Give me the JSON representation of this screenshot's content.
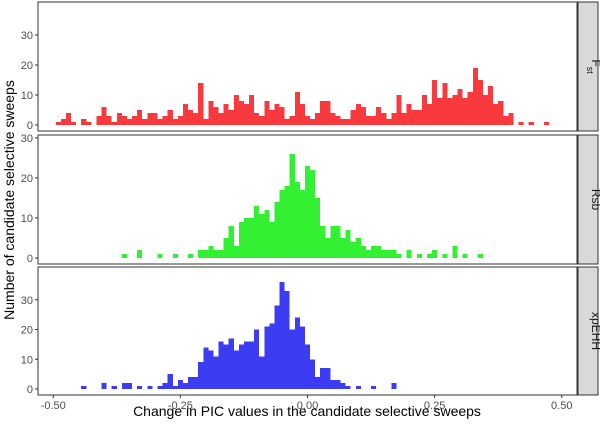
{
  "chart_data": {
    "type": "bar",
    "xlabel": "Change in PIC values in the candidate selective sweeps",
    "ylabel": "Number of candidate selective sweeps",
    "xlim": [
      -0.53,
      0.53
    ],
    "xticks": [
      -0.5,
      -0.25,
      0.0,
      0.25,
      0.5
    ],
    "xtick_labels": [
      "-0.50",
      "-0.25",
      "0.00",
      "0.25",
      "0.50"
    ],
    "yticks": [
      0,
      10,
      20,
      30
    ],
    "bin_width": 0.01,
    "grid": false,
    "panels": [
      {
        "name": "Fst",
        "label_main": "F",
        "label_sub": "st",
        "color": "#f8393e",
        "ylim": [
          0,
          40
        ],
        "bins": [
          [
            -0.49,
            1
          ],
          [
            -0.48,
            2
          ],
          [
            -0.47,
            4
          ],
          [
            -0.46,
            1
          ],
          [
            -0.44,
            2
          ],
          [
            -0.43,
            1
          ],
          [
            -0.41,
            3
          ],
          [
            -0.4,
            6
          ],
          [
            -0.39,
            3
          ],
          [
            -0.38,
            1
          ],
          [
            -0.37,
            4
          ],
          [
            -0.36,
            3
          ],
          [
            -0.35,
            2
          ],
          [
            -0.34,
            3
          ],
          [
            -0.33,
            5
          ],
          [
            -0.32,
            2
          ],
          [
            -0.31,
            4
          ],
          [
            -0.3,
            4
          ],
          [
            -0.29,
            2
          ],
          [
            -0.28,
            3
          ],
          [
            -0.27,
            5
          ],
          [
            -0.26,
            2
          ],
          [
            -0.25,
            3
          ],
          [
            -0.24,
            7
          ],
          [
            -0.23,
            5
          ],
          [
            -0.22,
            4
          ],
          [
            -0.21,
            14
          ],
          [
            -0.2,
            2
          ],
          [
            -0.19,
            8
          ],
          [
            -0.18,
            6
          ],
          [
            -0.17,
            4
          ],
          [
            -0.16,
            7
          ],
          [
            -0.15,
            5
          ],
          [
            -0.14,
            10
          ],
          [
            -0.13,
            8
          ],
          [
            -0.12,
            7
          ],
          [
            -0.11,
            10
          ],
          [
            -0.1,
            4
          ],
          [
            -0.09,
            3
          ],
          [
            -0.08,
            8
          ],
          [
            -0.07,
            5
          ],
          [
            -0.06,
            7
          ],
          [
            -0.05,
            6
          ],
          [
            -0.04,
            2
          ],
          [
            -0.03,
            3
          ],
          [
            -0.02,
            11
          ],
          [
            -0.01,
            7
          ],
          [
            0.0,
            3
          ],
          [
            0.01,
            2
          ],
          [
            0.02,
            4
          ],
          [
            0.03,
            8
          ],
          [
            0.04,
            8
          ],
          [
            0.05,
            4
          ],
          [
            0.06,
            3
          ],
          [
            0.07,
            2
          ],
          [
            0.08,
            2
          ],
          [
            0.09,
            5
          ],
          [
            0.1,
            7
          ],
          [
            0.11,
            6
          ],
          [
            0.12,
            3
          ],
          [
            0.13,
            3
          ],
          [
            0.14,
            6
          ],
          [
            0.15,
            4
          ],
          [
            0.16,
            2
          ],
          [
            0.17,
            4
          ],
          [
            0.18,
            10
          ],
          [
            0.19,
            4
          ],
          [
            0.2,
            7
          ],
          [
            0.21,
            5
          ],
          [
            0.22,
            5
          ],
          [
            0.23,
            10
          ],
          [
            0.24,
            7
          ],
          [
            0.25,
            15
          ],
          [
            0.26,
            9
          ],
          [
            0.27,
            14
          ],
          [
            0.28,
            9
          ],
          [
            0.29,
            10
          ],
          [
            0.3,
            12
          ],
          [
            0.31,
            9
          ],
          [
            0.32,
            11
          ],
          [
            0.33,
            19
          ],
          [
            0.34,
            15
          ],
          [
            0.35,
            10
          ],
          [
            0.36,
            13
          ],
          [
            0.37,
            7
          ],
          [
            0.38,
            8
          ],
          [
            0.39,
            3
          ],
          [
            0.4,
            4
          ],
          [
            0.42,
            1
          ],
          [
            0.44,
            1
          ],
          [
            0.47,
            1
          ]
        ]
      },
      {
        "name": "Rsb",
        "label_main": "Rsb",
        "label_sub": "",
        "color": "#33f033",
        "ylim": [
          0,
          30
        ],
        "bins": [
          [
            -0.36,
            1
          ],
          [
            -0.33,
            2
          ],
          [
            -0.29,
            1
          ],
          [
            -0.26,
            1
          ],
          [
            -0.23,
            1
          ],
          [
            -0.21,
            2
          ],
          [
            -0.2,
            2
          ],
          [
            -0.19,
            3
          ],
          [
            -0.18,
            2
          ],
          [
            -0.17,
            2
          ],
          [
            -0.16,
            5
          ],
          [
            -0.15,
            8
          ],
          [
            -0.14,
            3
          ],
          [
            -0.13,
            9
          ],
          [
            -0.12,
            10
          ],
          [
            -0.11,
            10
          ],
          [
            -0.1,
            13
          ],
          [
            -0.09,
            11
          ],
          [
            -0.08,
            12
          ],
          [
            -0.07,
            9
          ],
          [
            -0.06,
            14
          ],
          [
            -0.05,
            17
          ],
          [
            -0.04,
            18
          ],
          [
            -0.03,
            26
          ],
          [
            -0.02,
            19
          ],
          [
            -0.01,
            17
          ],
          [
            0.0,
            23
          ],
          [
            0.01,
            22
          ],
          [
            0.02,
            15
          ],
          [
            0.03,
            8
          ],
          [
            0.04,
            5
          ],
          [
            0.05,
            8
          ],
          [
            0.06,
            8
          ],
          [
            0.07,
            5
          ],
          [
            0.08,
            7
          ],
          [
            0.09,
            4
          ],
          [
            0.1,
            5
          ],
          [
            0.11,
            3
          ],
          [
            0.12,
            2
          ],
          [
            0.13,
            3
          ],
          [
            0.14,
            3
          ],
          [
            0.15,
            2
          ],
          [
            0.16,
            2
          ],
          [
            0.17,
            2
          ],
          [
            0.18,
            1
          ],
          [
            0.2,
            2
          ],
          [
            0.22,
            1
          ],
          [
            0.24,
            1
          ],
          [
            0.25,
            2
          ],
          [
            0.27,
            1
          ],
          [
            0.29,
            3
          ],
          [
            0.31,
            1
          ],
          [
            0.34,
            1
          ]
        ]
      },
      {
        "name": "xpEHH",
        "label_main": "xpEHH",
        "label_sub": "",
        "color": "#3c3cf2",
        "ylim": [
          0,
          40
        ],
        "bins": [
          [
            -0.44,
            1
          ],
          [
            -0.4,
            2
          ],
          [
            -0.38,
            1
          ],
          [
            -0.36,
            2
          ],
          [
            -0.35,
            2
          ],
          [
            -0.33,
            1
          ],
          [
            -0.31,
            1
          ],
          [
            -0.29,
            1
          ],
          [
            -0.28,
            2
          ],
          [
            -0.27,
            5
          ],
          [
            -0.26,
            1
          ],
          [
            -0.25,
            3
          ],
          [
            -0.24,
            2
          ],
          [
            -0.23,
            4
          ],
          [
            -0.22,
            4
          ],
          [
            -0.21,
            9
          ],
          [
            -0.2,
            14
          ],
          [
            -0.19,
            13
          ],
          [
            -0.18,
            11
          ],
          [
            -0.17,
            16
          ],
          [
            -0.16,
            15
          ],
          [
            -0.15,
            17
          ],
          [
            -0.14,
            13
          ],
          [
            -0.13,
            15
          ],
          [
            -0.12,
            16
          ],
          [
            -0.11,
            16
          ],
          [
            -0.1,
            20
          ],
          [
            -0.09,
            11
          ],
          [
            -0.08,
            21
          ],
          [
            -0.07,
            22
          ],
          [
            -0.06,
            28
          ],
          [
            -0.05,
            36
          ],
          [
            -0.04,
            33
          ],
          [
            -0.03,
            20
          ],
          [
            -0.02,
            24
          ],
          [
            -0.01,
            21
          ],
          [
            0.0,
            15
          ],
          [
            0.01,
            10
          ],
          [
            0.02,
            4
          ],
          [
            0.03,
            7
          ],
          [
            0.04,
            7
          ],
          [
            0.05,
            3
          ],
          [
            0.06,
            3
          ],
          [
            0.07,
            2
          ],
          [
            0.08,
            1
          ],
          [
            0.1,
            1
          ],
          [
            0.13,
            1
          ],
          [
            0.17,
            2
          ]
        ]
      }
    ]
  }
}
